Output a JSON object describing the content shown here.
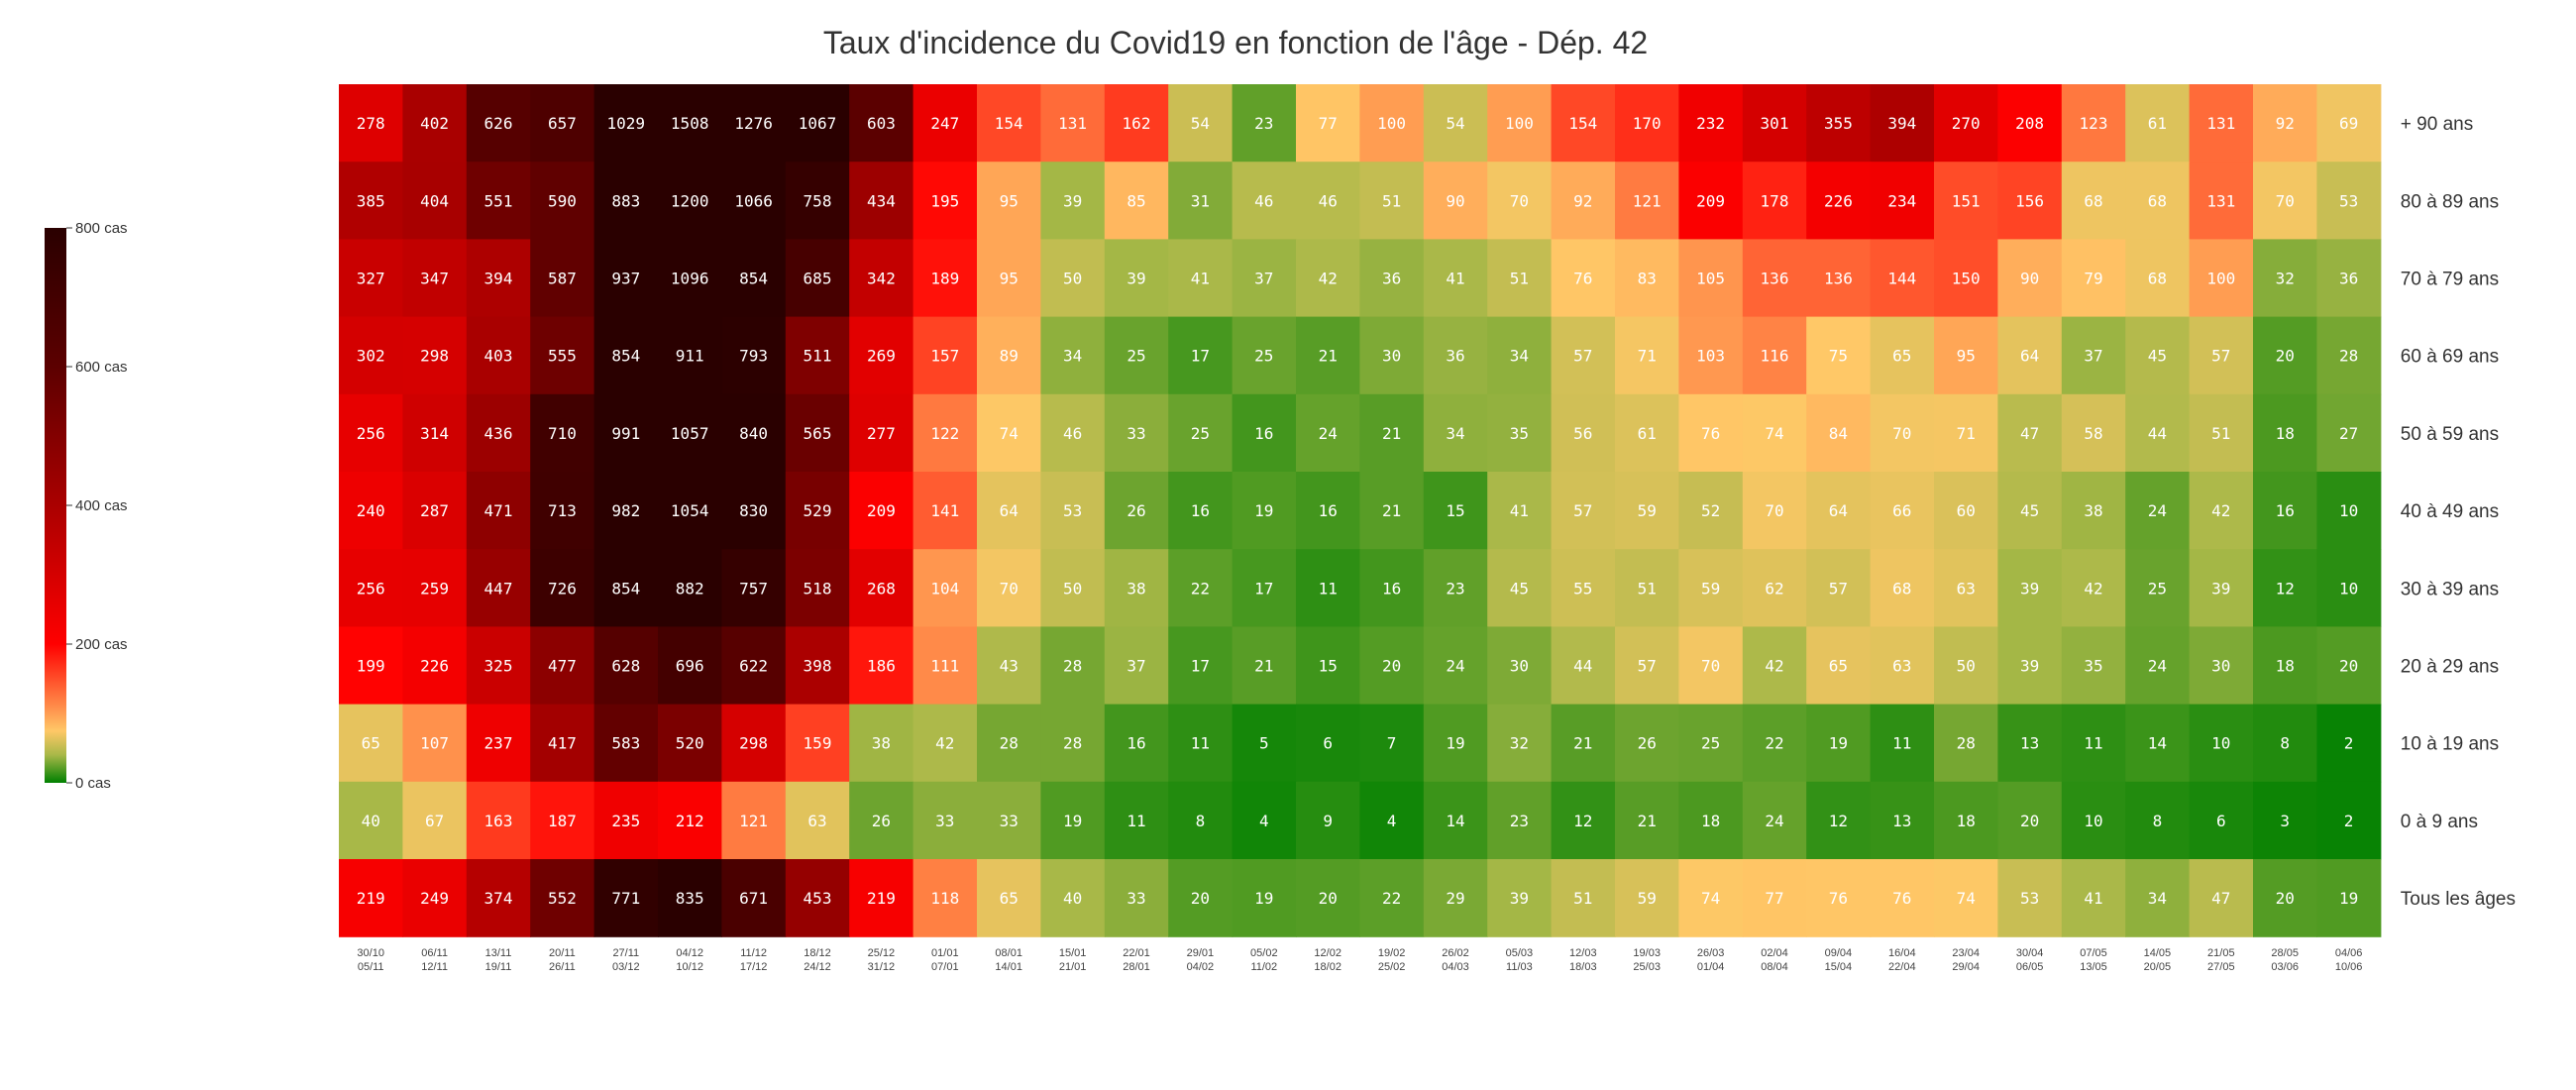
{
  "chart_data": {
    "type": "heatmap",
    "title": "Taux d'incidence du Covid19 en fonction de l'âge - Dép. 42",
    "rows": [
      "+ 90 ans",
      "80 à 89 ans",
      "70 à 79 ans",
      "60 à 69 ans",
      "50 à 59 ans",
      "40 à 49 ans",
      "30 à 39 ans",
      "20 à 29 ans",
      "10 à 19 ans",
      "0 à 9 ans",
      "Tous les âges"
    ],
    "columns": [
      [
        "30/10",
        "05/11"
      ],
      [
        "06/11",
        "12/11"
      ],
      [
        "13/11",
        "19/11"
      ],
      [
        "20/11",
        "26/11"
      ],
      [
        "27/11",
        "03/12"
      ],
      [
        "04/12",
        "10/12"
      ],
      [
        "11/12",
        "17/12"
      ],
      [
        "18/12",
        "24/12"
      ],
      [
        "25/12",
        "31/12"
      ],
      [
        "01/01",
        "07/01"
      ],
      [
        "08/01",
        "14/01"
      ],
      [
        "15/01",
        "21/01"
      ],
      [
        "22/01",
        "28/01"
      ],
      [
        "29/01",
        "04/02"
      ],
      [
        "05/02",
        "11/02"
      ],
      [
        "12/02",
        "18/02"
      ],
      [
        "19/02",
        "25/02"
      ],
      [
        "26/02",
        "04/03"
      ],
      [
        "05/03",
        "11/03"
      ],
      [
        "12/03",
        "18/03"
      ],
      [
        "19/03",
        "25/03"
      ],
      [
        "26/03",
        "01/04"
      ],
      [
        "02/04",
        "08/04"
      ],
      [
        "09/04",
        "15/04"
      ],
      [
        "16/04",
        "22/04"
      ],
      [
        "23/04",
        "29/04"
      ],
      [
        "30/04",
        "06/05"
      ],
      [
        "07/05",
        "13/05"
      ],
      [
        "14/05",
        "20/05"
      ],
      [
        "21/05",
        "27/05"
      ],
      [
        "28/05",
        "03/06"
      ],
      [
        "04/06",
        "10/06"
      ]
    ],
    "values": [
      [
        278,
        402,
        626,
        657,
        1029,
        1508,
        1276,
        1067,
        603,
        247,
        154,
        131,
        162,
        54,
        23,
        77,
        100,
        54,
        100,
        154,
        170,
        232,
        301,
        355,
        394,
        270,
        208,
        123,
        61,
        131,
        92,
        69
      ],
      [
        385,
        404,
        551,
        590,
        883,
        1200,
        1066,
        758,
        434,
        195,
        95,
        39,
        85,
        31,
        46,
        46,
        51,
        90,
        70,
        92,
        121,
        209,
        178,
        226,
        234,
        151,
        156,
        68,
        68,
        131,
        70,
        53
      ],
      [
        327,
        347,
        394,
        587,
        937,
        1096,
        854,
        685,
        342,
        189,
        95,
        50,
        39,
        41,
        37,
        42,
        36,
        41,
        51,
        76,
        83,
        105,
        136,
        136,
        144,
        150,
        90,
        79,
        68,
        100,
        32,
        36
      ],
      [
        302,
        298,
        403,
        555,
        854,
        911,
        793,
        511,
        269,
        157,
        89,
        34,
        25,
        17,
        25,
        21,
        30,
        36,
        34,
        57,
        71,
        103,
        116,
        75,
        65,
        95,
        64,
        37,
        45,
        57,
        20,
        28
      ],
      [
        256,
        314,
        436,
        710,
        991,
        1057,
        840,
        565,
        277,
        122,
        74,
        46,
        33,
        25,
        16,
        24,
        21,
        34,
        35,
        56,
        61,
        76,
        74,
        84,
        70,
        71,
        47,
        58,
        44,
        51,
        18,
        27
      ],
      [
        240,
        287,
        471,
        713,
        982,
        1054,
        830,
        529,
        209,
        141,
        64,
        53,
        26,
        16,
        19,
        16,
        21,
        15,
        41,
        57,
        59,
        52,
        70,
        64,
        66,
        60,
        45,
        38,
        24,
        42,
        16,
        10
      ],
      [
        256,
        259,
        447,
        726,
        854,
        882,
        757,
        518,
        268,
        104,
        70,
        50,
        38,
        22,
        17,
        11,
        16,
        23,
        45,
        55,
        51,
        59,
        62,
        57,
        68,
        63,
        39,
        42,
        25,
        39,
        12,
        10
      ],
      [
        199,
        226,
        325,
        477,
        628,
        696,
        622,
        398,
        186,
        111,
        43,
        28,
        37,
        17,
        21,
        15,
        20,
        24,
        30,
        44,
        57,
        70,
        42,
        65,
        63,
        50,
        39,
        35,
        24,
        30,
        18,
        20
      ],
      [
        65,
        107,
        237,
        417,
        583,
        520,
        298,
        159,
        38,
        42,
        28,
        28,
        16,
        11,
        5,
        6,
        7,
        19,
        32,
        21,
        26,
        25,
        22,
        19,
        11,
        28,
        13,
        11,
        14,
        10,
        8,
        2
      ],
      [
        40,
        67,
        163,
        187,
        235,
        212,
        121,
        63,
        26,
        33,
        33,
        19,
        11,
        8,
        4,
        9,
        4,
        14,
        23,
        12,
        21,
        18,
        24,
        12,
        13,
        18,
        20,
        10,
        8,
        6,
        3,
        2
      ],
      [
        219,
        249,
        374,
        552,
        771,
        835,
        671,
        453,
        219,
        118,
        65,
        40,
        33,
        20,
        19,
        20,
        22,
        29,
        39,
        51,
        59,
        74,
        77,
        76,
        76,
        74,
        53,
        41,
        34,
        47,
        20,
        19
      ]
    ],
    "color_scale": {
      "stops": [
        {
          "value": 0,
          "color": "#008000"
        },
        {
          "value": 40,
          "color": "#a8b848"
        },
        {
          "value": 75,
          "color": "#ffc867"
        },
        {
          "value": 110,
          "color": "#ff8c4a"
        },
        {
          "value": 200,
          "color": "#ff0000"
        },
        {
          "value": 400,
          "color": "#aa0000"
        },
        {
          "value": 600,
          "color": "#5c0000"
        },
        {
          "value": 800,
          "color": "#2a0000"
        }
      ]
    },
    "legend": {
      "placement": "left",
      "ticks": [
        "800 cas",
        "600 cas",
        "400 cas",
        "200 cas",
        "0 cas"
      ],
      "tick_values": [
        800,
        600,
        400,
        200,
        0
      ]
    }
  }
}
